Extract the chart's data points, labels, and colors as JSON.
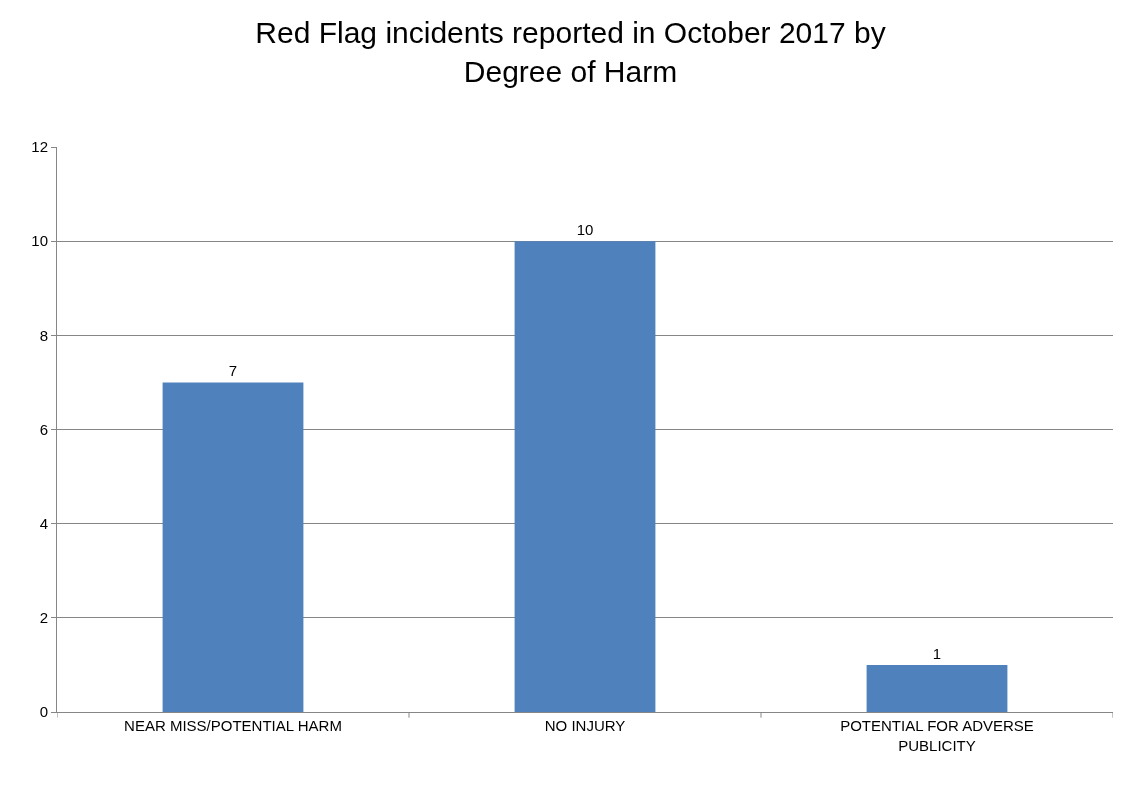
{
  "chart_data": {
    "type": "bar",
    "title": "Red Flag incidents reported in October 2017 by Degree of Harm",
    "categories": [
      "NEAR MISS/POTENTIAL HARM",
      "NO INJURY",
      "POTENTIAL FOR ADVERSE PUBLICITY"
    ],
    "values": [
      7,
      10,
      1
    ],
    "color": "#4f81bd",
    "ylim": [
      0,
      12
    ],
    "yticks": [
      0,
      2,
      4,
      6,
      8,
      10,
      12
    ],
    "grid": "y",
    "data_labels": true
  }
}
